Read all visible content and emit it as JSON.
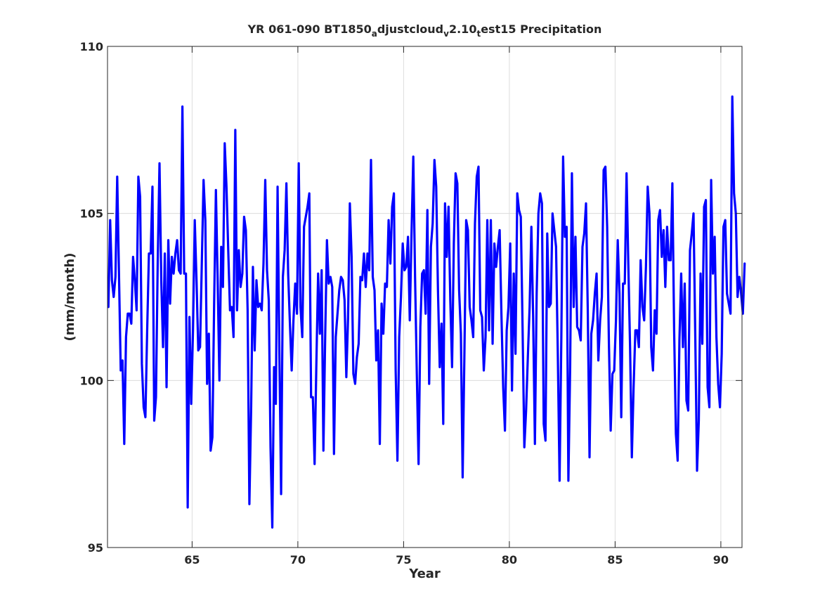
{
  "chart_data": {
    "type": "line",
    "title_parts": [
      {
        "text": "YR 061-090 BT1850",
        "sub": false
      },
      {
        "text": "a",
        "sub": true
      },
      {
        "text": "djustcloud",
        "sub": false
      },
      {
        "text": "v",
        "sub": true
      },
      {
        "text": "2.10",
        "sub": false
      },
      {
        "text": "t",
        "sub": true
      },
      {
        "text": "est15 Precipitation",
        "sub": false
      }
    ],
    "xlabel": "Year",
    "ylabel": "(mm/month)",
    "xlim": [
      61,
      91
    ],
    "ylim": [
      95,
      110
    ],
    "xticks": [
      65,
      70,
      75,
      80,
      85,
      90
    ],
    "yticks": [
      95,
      100,
      105,
      110
    ],
    "grid": true,
    "line_color": "#0000ff",
    "x_start": 61.042,
    "x_step": 0.08333,
    "series": [
      {
        "values": [
          102.2,
          104.8,
          103.0,
          102.5,
          103.1,
          106.1,
          103.2,
          100.3,
          100.6,
          98.1,
          101.3,
          102.0,
          102.0,
          101.7,
          103.7,
          103.0,
          102.1,
          106.1,
          105.5,
          100.5,
          99.2,
          98.9,
          101.5,
          103.8,
          103.8,
          105.8,
          98.8,
          99.5,
          103.6,
          106.5,
          103.0,
          101.0,
          103.8,
          99.8,
          104.2,
          102.3,
          103.7,
          103.2,
          103.8,
          104.2,
          103.3,
          103.2,
          108.2,
          103.2,
          103.2,
          96.2,
          101.9,
          99.3,
          101.5,
          104.8,
          103.0,
          100.9,
          101.0,
          103.5,
          106.0,
          104.8,
          99.9,
          101.4,
          97.9,
          98.3,
          102.3,
          105.7,
          103.0,
          100.0,
          104.0,
          102.8,
          107.1,
          105.8,
          103.9,
          102.1,
          102.2,
          101.3,
          107.5,
          102.1,
          103.9,
          102.8,
          103.2,
          104.9,
          104.5,
          102.1,
          96.3,
          99.2,
          103.4,
          100.9,
          103.0,
          102.2,
          102.3,
          102.1,
          103.5,
          106.0,
          103.3,
          102.4,
          98.0,
          95.6,
          100.4,
          99.3,
          105.8,
          100.9,
          96.6,
          103.1,
          103.9,
          105.9,
          103.2,
          101.7,
          100.3,
          101.8,
          102.9,
          102.0,
          106.5,
          102.2,
          101.3,
          104.6,
          104.9,
          105.2,
          105.6,
          99.5,
          99.5,
          97.5,
          100.5,
          103.2,
          101.4,
          103.3,
          97.9,
          101.3,
          104.2,
          102.9,
          103.1,
          102.8,
          97.8,
          101.3,
          102.0,
          102.7,
          103.1,
          103.0,
          102.4,
          100.1,
          101.9,
          105.3,
          103.7,
          100.2,
          99.9,
          100.7,
          101.1,
          103.1,
          103.0,
          103.8,
          102.8,
          103.8,
          103.3,
          106.6,
          103.1,
          102.7,
          100.6,
          101.5,
          98.1,
          102.3,
          101.4,
          102.9,
          102.8,
          104.8,
          103.5,
          105.2,
          105.6,
          100.3,
          97.6,
          101.3,
          102.5,
          104.1,
          103.3,
          103.4,
          104.3,
          101.8,
          104.4,
          106.7,
          103.1,
          100.2,
          97.5,
          101.6,
          103.2,
          103.3,
          102.0,
          105.1,
          99.9,
          104.0,
          104.7,
          106.6,
          105.8,
          102.7,
          100.4,
          101.7,
          98.7,
          105.3,
          103.7,
          105.2,
          102.4,
          100.4,
          104.1,
          106.2,
          105.9,
          102.7,
          101.4,
          97.1,
          100.8,
          104.8,
          104.5,
          102.2,
          101.8,
          101.3,
          104.7,
          106.1,
          106.4,
          102.1,
          101.9,
          100.3,
          101.3,
          104.8,
          101.5,
          104.8,
          101.1,
          104.1,
          103.4,
          104.0,
          104.5,
          102.0,
          99.8,
          98.5,
          101.5,
          102.2,
          104.1,
          99.7,
          103.2,
          100.8,
          105.6,
          105.1,
          104.9,
          101.6,
          98.0,
          99.1,
          100.7,
          102.2,
          104.6,
          101.9,
          98.1,
          102.6,
          105.0,
          105.6,
          105.3,
          98.7,
          98.2,
          104.4,
          102.2,
          102.3,
          105.0,
          104.5,
          104.0,
          100.8,
          97.0,
          101.3,
          106.7,
          104.3,
          104.6,
          97.0,
          100.4,
          106.2,
          102.2,
          104.3,
          101.6,
          101.5,
          101.2,
          104.0,
          104.4,
          105.3,
          102.1,
          97.7,
          101.4,
          101.8,
          102.6,
          103.2,
          100.6,
          101.8,
          102.5,
          106.3,
          106.4,
          104.6,
          101.1,
          98.5,
          100.2,
          100.3,
          101.8,
          104.2,
          102.6,
          98.9,
          102.9,
          102.9,
          106.2,
          103.5,
          101.0,
          97.7,
          99.8,
          101.5,
          101.5,
          101.0,
          103.6,
          102.2,
          101.8,
          103.4,
          105.8,
          105.0,
          101.0,
          100.3,
          102.1,
          101.4,
          104.8,
          105.1,
          103.7,
          104.5,
          102.8,
          104.6,
          103.6,
          103.6,
          105.9,
          101.5,
          98.4,
          97.6,
          101.2,
          103.2,
          101.0,
          102.9,
          99.4,
          99.1,
          103.9,
          104.4,
          105.0,
          101.3,
          97.3,
          98.8,
          103.2,
          101.1,
          105.2,
          105.4,
          99.8,
          99.2,
          106.0,
          103.2,
          104.3,
          101.3,
          99.9,
          99.2,
          100.8,
          104.6,
          104.8,
          102.6,
          102.3,
          102.0,
          108.5,
          105.6,
          105.0,
          102.5,
          103.1,
          102.6,
          102.0,
          103.5
        ]
      }
    ]
  }
}
